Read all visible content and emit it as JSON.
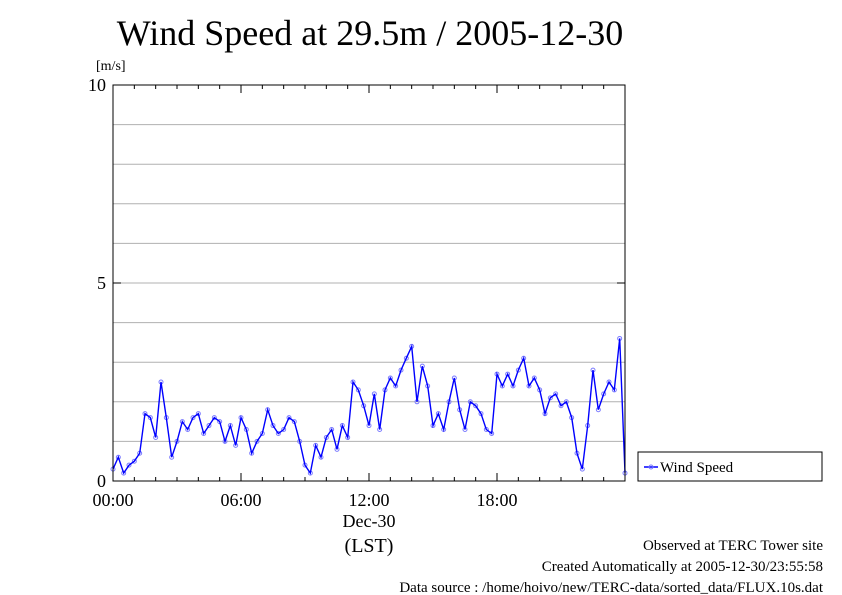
{
  "chart_data": {
    "type": "line",
    "title": "Wind Speed at 29.5m / 2005-12-30",
    "ylabel": "[m/s]",
    "xlabel": "(LST)",
    "x_date_label": "Dec-30",
    "ylim": [
      0,
      10
    ],
    "xlim_hours": [
      0,
      24
    ],
    "x_ticks": [
      {
        "hour": 0,
        "label": "00:00"
      },
      {
        "hour": 6,
        "label": "06:00"
      },
      {
        "hour": 12,
        "label": "12:00"
      },
      {
        "hour": 18,
        "label": "18:00"
      }
    ],
    "y_ticks": [
      {
        "value": 0,
        "label": "0"
      },
      {
        "value": 5,
        "label": "5"
      },
      {
        "value": 10,
        "label": "10"
      }
    ],
    "grid_y_step": 1,
    "grid": true,
    "legend_position": "right",
    "series": [
      {
        "name": "Wind Speed",
        "color": "#0000ff",
        "points_color": "#7b7bff",
        "x_hours": [
          0.0,
          0.25,
          0.5,
          0.75,
          1.0,
          1.25,
          1.5,
          1.75,
          2.0,
          2.25,
          2.5,
          2.75,
          3.0,
          3.25,
          3.5,
          3.75,
          4.0,
          4.25,
          4.5,
          4.75,
          5.0,
          5.25,
          5.5,
          5.75,
          6.0,
          6.25,
          6.5,
          6.75,
          7.0,
          7.25,
          7.5,
          7.75,
          8.0,
          8.25,
          8.5,
          8.75,
          9.0,
          9.25,
          9.5,
          9.75,
          10.0,
          10.25,
          10.5,
          10.75,
          11.0,
          11.25,
          11.5,
          11.75,
          12.0,
          12.25,
          12.5,
          12.75,
          13.0,
          13.25,
          13.5,
          13.75,
          14.0,
          14.25,
          14.5,
          14.75,
          15.0,
          15.25,
          15.5,
          15.75,
          16.0,
          16.25,
          16.5,
          16.75,
          17.0,
          17.25,
          17.5,
          17.75,
          18.0,
          18.25,
          18.5,
          18.75,
          19.0,
          19.25,
          19.5,
          19.75,
          20.0,
          20.25,
          20.5,
          20.75,
          21.0,
          21.25,
          21.5,
          21.75,
          22.0,
          22.25,
          22.5,
          22.75,
          23.0,
          23.25,
          23.5,
          23.75,
          24.0
        ],
        "values": [
          0.3,
          0.6,
          0.2,
          0.4,
          0.5,
          0.7,
          1.7,
          1.6,
          1.1,
          2.5,
          1.6,
          0.6,
          1.0,
          1.5,
          1.3,
          1.6,
          1.7,
          1.2,
          1.4,
          1.6,
          1.5,
          1.0,
          1.4,
          0.9,
          1.6,
          1.3,
          0.7,
          1.0,
          1.2,
          1.8,
          1.4,
          1.2,
          1.3,
          1.6,
          1.5,
          1.0,
          0.4,
          0.2,
          0.9,
          0.6,
          1.1,
          1.3,
          0.8,
          1.4,
          1.1,
          2.5,
          2.3,
          1.9,
          1.4,
          2.2,
          1.3,
          2.3,
          2.6,
          2.4,
          2.8,
          3.1,
          3.4,
          2.0,
          2.9,
          2.4,
          1.4,
          1.7,
          1.3,
          2.0,
          2.6,
          1.8,
          1.3,
          2.0,
          1.9,
          1.7,
          1.3,
          1.2,
          2.7,
          2.4,
          2.7,
          2.4,
          2.8,
          3.1,
          2.4,
          2.6,
          2.3,
          1.7,
          2.1,
          2.2,
          1.9,
          2.0,
          1.6,
          0.7,
          0.3,
          1.4,
          2.8,
          1.8,
          2.2,
          2.5,
          2.3,
          3.6,
          0.2
        ]
      }
    ]
  },
  "footer": {
    "line1": "Observed at TERC Tower site",
    "line2": "Created Automatically at 2005-12-30/23:55:58",
    "line3": "Data source : /home/hoivo/new/TERC-data/sorted_data/FLUX.10s.dat"
  }
}
